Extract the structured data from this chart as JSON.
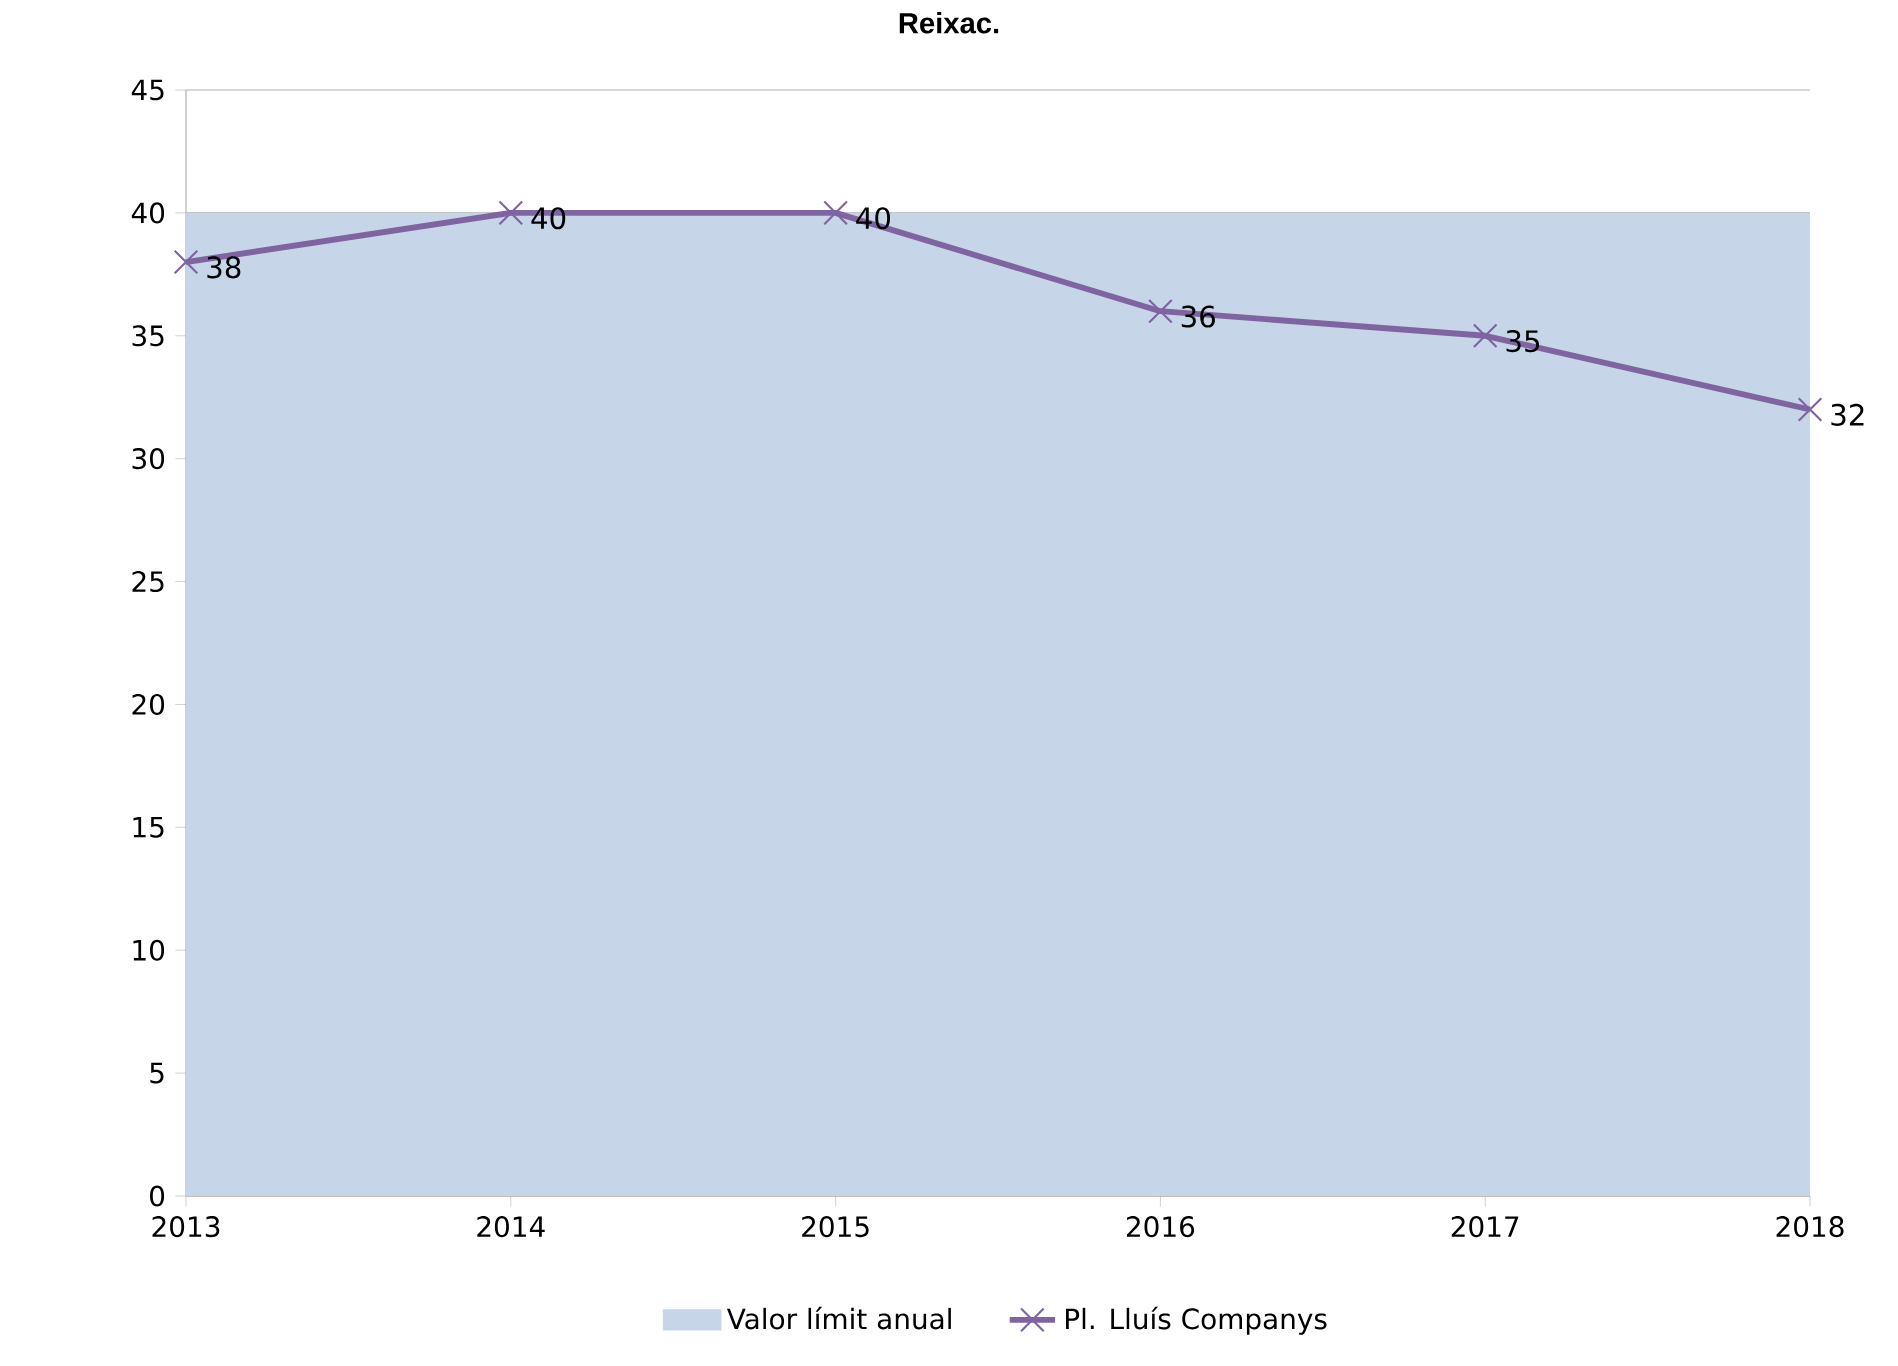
{
  "chart_data": {
    "type": "line",
    "title": "Reixac.",
    "categories": [
      "2013",
      "2014",
      "2015",
      "2016",
      "2017",
      "2018"
    ],
    "series": [
      {
        "name": "Valor límit anual",
        "type": "area",
        "color": "#c6d5e8",
        "values": [
          40,
          40,
          40,
          40,
          40,
          40
        ]
      },
      {
        "name": "Pl. Lluís Companys",
        "color": "#7f64a1",
        "marker": "cross",
        "values": [
          38,
          40,
          40,
          36,
          35,
          32
        ],
        "value_labels": [
          "38",
          "40",
          "40",
          "36",
          "35",
          "32"
        ]
      }
    ],
    "ylim": [
      0,
      45
    ],
    "yticks": [
      0,
      5,
      10,
      15,
      20,
      25,
      30,
      35,
      40,
      45
    ],
    "grid": "y",
    "legend": "bottom"
  }
}
